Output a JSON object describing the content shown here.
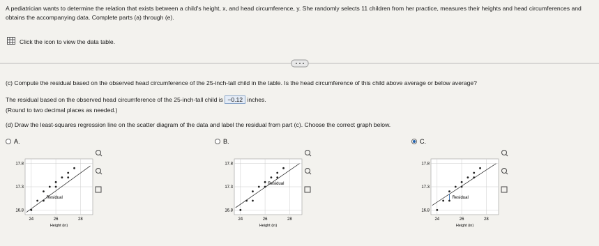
{
  "problem": {
    "intro": "A pediatrician wants to determine the relation that exists between a child's height, x, and head circumference, y. She randomly selects 11 children from her practice, measures their heights and head circumferences and obtains the accompanying data. Complete parts (a) through (e).",
    "data_link": "Click the icon to view the data table.",
    "part_c": {
      "question": "(c) Compute the residual based on the observed head circumference of the 25-inch-tall child in the table. Is the head circumference of this child above average or below average?",
      "answer_prefix": "The residual based on the observed head circumference of the 25-inch-tall child is",
      "answer": "−0.12",
      "answer_suffix": "inches.",
      "note": "(Round to two decimal places as needed.)"
    },
    "part_d": {
      "question": "(d) Draw the least-squares regression line on the scatter diagram of the data and label the residual from part (c). Choose the correct graph below.",
      "options": [
        {
          "label": "A.",
          "selected": false,
          "graph": {
            "x_label": "Height (in)",
            "residual_label": "Residual",
            "xlim": [
              23.5,
              29
            ],
            "ylim": [
              16.7,
              17.9
            ],
            "xticks": [
              24,
              26,
              28
            ],
            "yticks": [
              16.8,
              17.3,
              17.8
            ],
            "points": {
              "x": [
                24,
                24.5,
                25,
                25,
                25.5,
                26,
                26,
                26.5,
                27,
                27,
                27.5
              ],
              "y": [
                16.8,
                17.0,
                17.0,
                17.2,
                17.3,
                17.3,
                17.4,
                17.5,
                17.5,
                17.6,
                17.7
              ]
            },
            "line": {
              "x": [
                23.6,
                28.8
              ],
              "y": [
                16.75,
                17.75
              ]
            },
            "residual_x": 25
          }
        },
        {
          "label": "B.",
          "selected": false,
          "graph": {
            "x_label": "Height (in)",
            "residual_label": "Residual",
            "xlim": [
              23.5,
              29
            ],
            "ylim": [
              16.7,
              17.9
            ],
            "xticks": [
              24,
              26,
              28
            ],
            "yticks": [
              16.8,
              17.3,
              17.8
            ],
            "points": {
              "x": [
                24,
                24.5,
                25,
                25,
                25.5,
                26,
                26,
                26.5,
                27,
                27,
                27.5
              ],
              "y": [
                16.8,
                17.0,
                17.0,
                17.2,
                17.3,
                17.3,
                17.4,
                17.5,
                17.5,
                17.6,
                17.7
              ]
            },
            "line": {
              "x": [
                23.6,
                28.8
              ],
              "y": [
                16.85,
                17.8
              ]
            },
            "residual_x": 26
          }
        },
        {
          "label": "C.",
          "selected": true,
          "graph": {
            "x_label": "Height (in)",
            "residual_label": "Residual",
            "xlim": [
              23.5,
              29
            ],
            "ylim": [
              16.7,
              17.9
            ],
            "xticks": [
              24,
              26,
              28
            ],
            "yticks": [
              16.8,
              17.3,
              17.8
            ],
            "points": {
              "x": [
                24,
                24.5,
                25,
                25,
                25.5,
                26,
                26,
                26.5,
                27,
                27,
                27.5
              ],
              "y": [
                16.8,
                17.0,
                17.0,
                17.2,
                17.3,
                17.3,
                17.4,
                17.5,
                17.5,
                17.6,
                17.7
              ]
            },
            "line": {
              "x": [
                23.6,
                28.8
              ],
              "y": [
                16.9,
                17.8
              ]
            },
            "residual_x": 25
          }
        }
      ]
    }
  }
}
